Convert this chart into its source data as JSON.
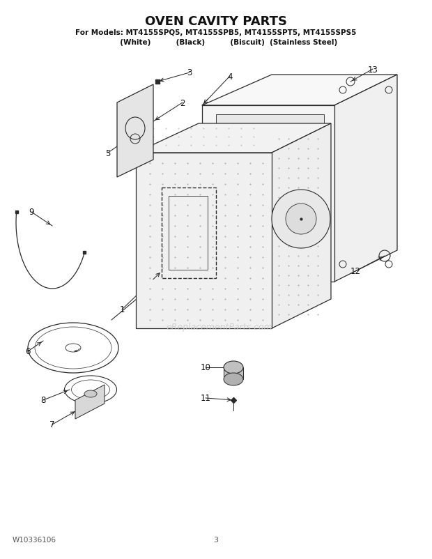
{
  "title": "OVEN CAVITY PARTS",
  "subtitle1": "For Models: MT4155SPQ5, MT4155SPB5, MT4155SPT5, MT4155SPS5",
  "subtitle2": "          (White)          (Black)          (Biscuit)  (Stainless Steel)",
  "part_number": "W10336106",
  "page": "3",
  "watermark": "eReplacementParts.com",
  "bg_color": "#ffffff",
  "line_color": "#2a2a2a",
  "label_color": "#111111"
}
